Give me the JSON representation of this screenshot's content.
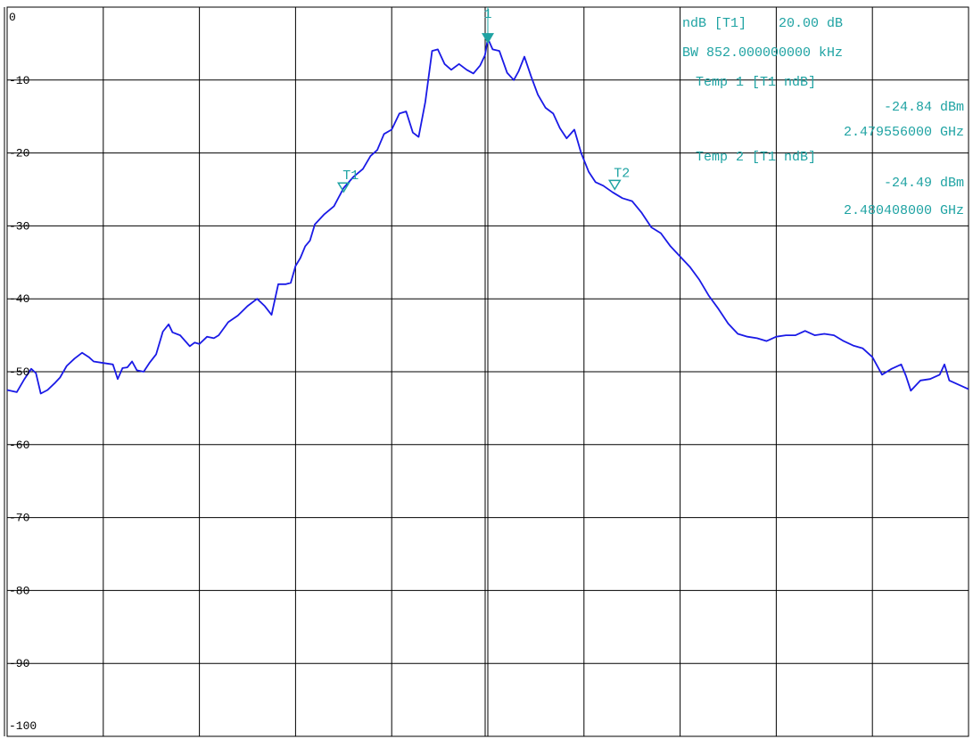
{
  "colors": {
    "background": "#ffffff",
    "grid": "#000000",
    "trace": "#1a1ae6",
    "marker": "#1fa3a3"
  },
  "marker_info": {
    "line1": "ndB [T1]    20.00 dB",
    "line2": "BW 852.000000000 kHz",
    "line3": "Temp 1 [T1 ndB]",
    "line4": "-24.84 dBm",
    "line5": "2.479556000 GHz",
    "line6": "Temp 2 [T1 ndB]",
    "line7": "-24.49 dBm",
    "line8": "2.480408000 GHz"
  },
  "chart_data": {
    "type": "line",
    "grid": true,
    "ylim": [
      -100,
      0
    ],
    "xlim": [
      0,
      10
    ],
    "y_tick_labels": [
      "0",
      "-10",
      "-20",
      "-30",
      "-40",
      "-50",
      "-60",
      "-70",
      "-80",
      "-90",
      "-100"
    ],
    "markers": [
      {
        "label": "1",
        "x": 5.0,
        "y": -4.3,
        "style": "filled"
      },
      {
        "label": "T1",
        "x": 3.5,
        "y": -24.84,
        "style": "hollow"
      },
      {
        "label": "T2",
        "x": 6.32,
        "y": -24.49,
        "style": "hollow"
      }
    ],
    "series": [
      {
        "x": [
          0,
          0.1,
          0.18,
          0.25,
          0.3,
          0.35,
          0.42,
          0.5,
          0.55,
          0.62,
          0.7,
          0.78,
          0.85,
          0.9,
          1.0,
          1.1,
          1.15,
          1.2,
          1.25,
          1.3,
          1.35,
          1.42,
          1.48,
          1.55,
          1.62,
          1.68,
          1.72,
          1.8,
          1.9,
          1.95,
          2.0,
          2.08,
          2.15,
          2.2,
          2.3,
          2.4,
          2.5,
          2.6,
          2.68,
          2.75,
          2.82,
          2.9,
          2.95,
          3.0,
          3.05,
          3.1,
          3.15,
          3.2,
          3.3,
          3.4,
          3.5,
          3.6,
          3.7,
          3.78,
          3.85,
          3.92,
          4.0,
          4.08,
          4.15,
          4.22,
          4.28,
          4.35,
          4.42,
          4.48,
          4.55,
          4.62,
          4.7,
          4.78,
          4.85,
          4.92,
          4.97,
          5.0,
          5.05,
          5.12,
          5.2,
          5.27,
          5.32,
          5.38,
          5.45,
          5.52,
          5.6,
          5.68,
          5.75,
          5.82,
          5.9,
          5.97,
          6.05,
          6.12,
          6.2,
          6.3,
          6.4,
          6.5,
          6.6,
          6.7,
          6.8,
          6.9,
          7.0,
          7.1,
          7.2,
          7.3,
          7.4,
          7.5,
          7.6,
          7.7,
          7.8,
          7.9,
          8.0,
          8.1,
          8.2,
          8.3,
          8.4,
          8.5,
          8.6,
          8.7,
          8.8,
          8.9,
          9.0,
          9.1,
          9.2,
          9.3,
          9.35,
          9.4,
          9.5,
          9.6,
          9.7,
          9.75,
          9.8,
          9.9,
          10.0
        ],
        "values": [
          -52.5,
          -52.8,
          -51.0,
          -49.6,
          -50.2,
          -53.0,
          -52.5,
          -51.5,
          -50.8,
          -49.2,
          -48.2,
          -47.4,
          -48.0,
          -48.6,
          -48.8,
          -49.0,
          -51.0,
          -49.5,
          -49.4,
          -48.6,
          -49.8,
          -50.0,
          -48.8,
          -47.6,
          -44.5,
          -43.5,
          -44.6,
          -45.0,
          -46.5,
          -46.0,
          -46.2,
          -45.2,
          -45.4,
          -45.0,
          -43.2,
          -42.3,
          -41.0,
          -40.0,
          -41.0,
          -42.2,
          -38.0,
          -38.0,
          -37.8,
          -35.5,
          -34.4,
          -32.8,
          -32.0,
          -29.8,
          -28.4,
          -27.3,
          -24.8,
          -23.3,
          -22.2,
          -20.4,
          -19.6,
          -17.4,
          -16.8,
          -14.6,
          -14.3,
          -17.2,
          -17.8,
          -13.0,
          -6.0,
          -5.8,
          -7.8,
          -8.6,
          -7.8,
          -8.6,
          -9.1,
          -8.0,
          -6.6,
          -4.3,
          -5.8,
          -6.0,
          -9.0,
          -10.0,
          -8.8,
          -6.8,
          -9.5,
          -12.0,
          -13.8,
          -14.6,
          -16.6,
          -18.0,
          -16.8,
          -20.0,
          -22.6,
          -24.0,
          -24.49,
          -25.4,
          -26.2,
          -26.6,
          -28.2,
          -30.2,
          -31.0,
          -32.8,
          -34.2,
          -35.6,
          -37.4,
          -39.6,
          -41.4,
          -43.4,
          -44.8,
          -45.2,
          -45.4,
          -45.8,
          -45.2,
          -45.0,
          -45.0,
          -44.4,
          -45.0,
          -44.8,
          -45.0,
          -45.8,
          -46.4,
          -46.8,
          -48.0,
          -50.4,
          -49.6,
          -49.0,
          -50.6,
          -52.6,
          -51.2,
          -51.0,
          -50.4,
          -49.0,
          -51.2,
          -51.8,
          -52.4
        ]
      }
    ]
  }
}
